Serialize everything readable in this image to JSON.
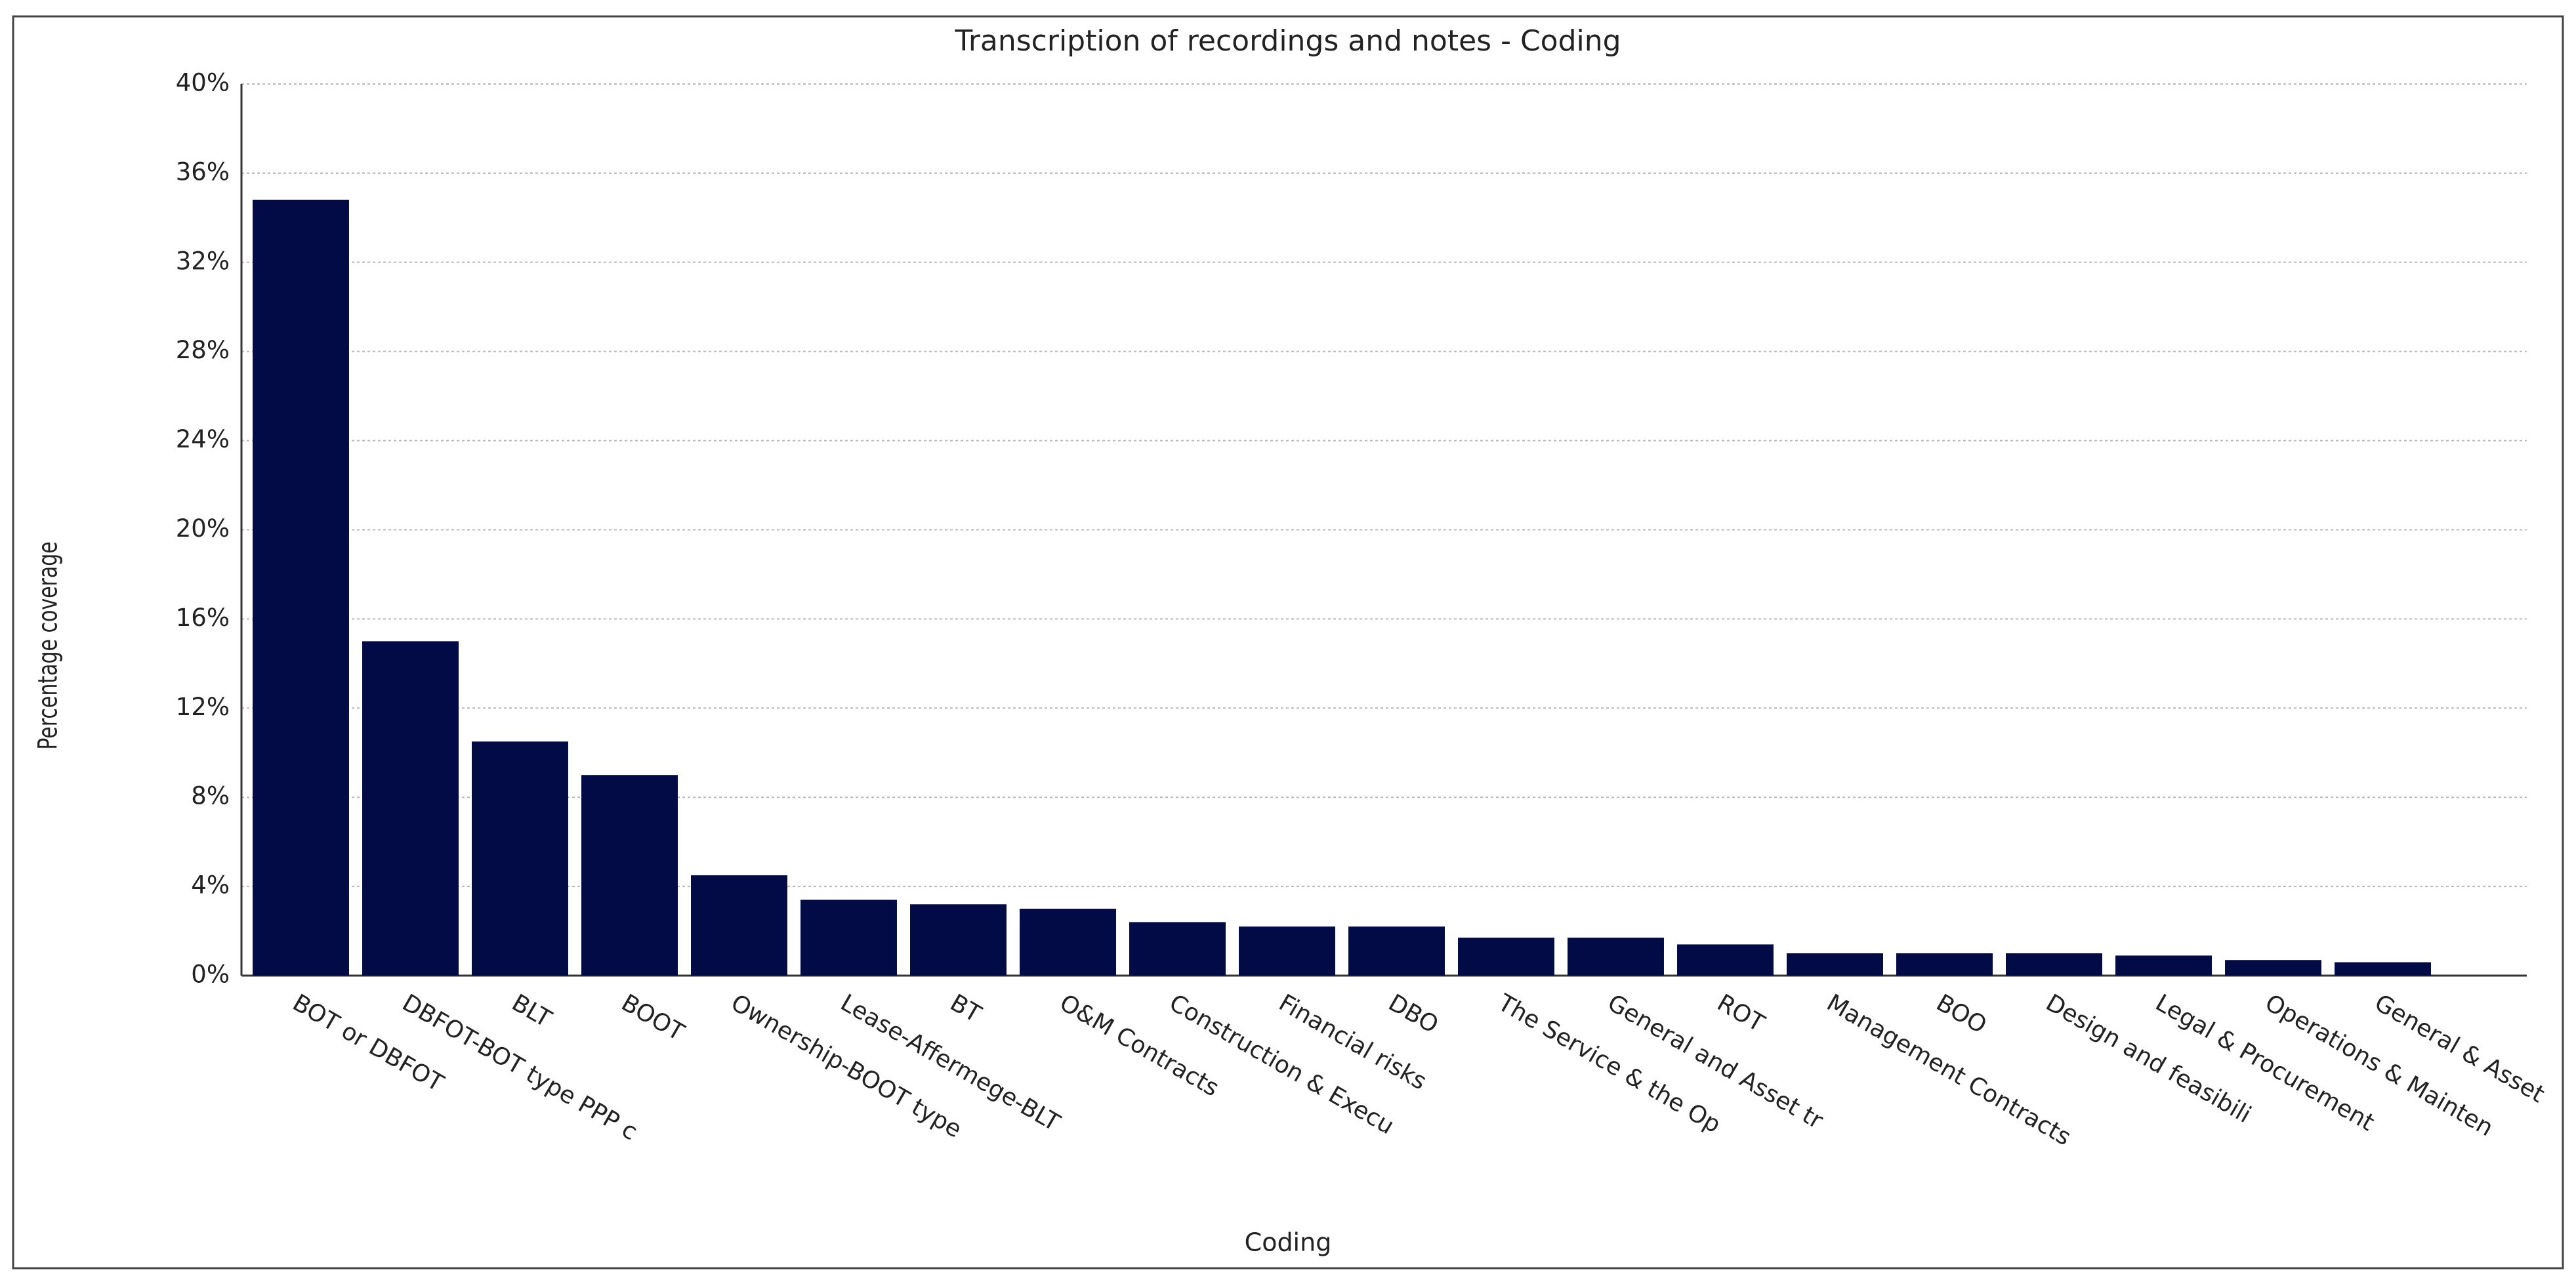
{
  "chart_data": {
    "type": "bar",
    "title": "Transcription of recordings and notes - Coding",
    "x_label": "Coding",
    "y_label": "Percentage coverage",
    "categories": [
      "BOT or DBFOT",
      "DBFOT-BOT type PPP c",
      "BLT",
      "BOOT",
      "Ownership-BOOT type",
      "Lease-Affermege-BLT",
      "BT",
      "O&M Contracts",
      "Construction & Execu",
      "Financial risks",
      "DBO",
      "The Service & the Op",
      "General and Asset tr",
      "ROT",
      "Management Contracts",
      "BOO",
      "Design and feasibili",
      "Legal & Procurement",
      "Operations & Mainten",
      "General & Asset"
    ],
    "values": [
      34.8,
      15.0,
      10.5,
      9.0,
      4.5,
      3.4,
      3.2,
      3.0,
      2.4,
      2.2,
      2.2,
      1.7,
      1.7,
      1.4,
      1.0,
      1.0,
      1.0,
      0.9,
      0.7,
      0.6
    ],
    "color": "#020b45",
    "ylim": [
      0,
      40
    ],
    "yticks": [
      {
        "value": 0,
        "label": "0%"
      },
      {
        "value": 4,
        "label": "4%"
      },
      {
        "value": 8,
        "label": "8%"
      },
      {
        "value": 12,
        "label": "12%"
      },
      {
        "value": 16,
        "label": "16%"
      },
      {
        "value": 20,
        "label": "20%"
      },
      {
        "value": 24,
        "label": "24%"
      },
      {
        "value": 28,
        "label": "28%"
      },
      {
        "value": 32,
        "label": "32%"
      },
      {
        "value": 36,
        "label": "36%"
      },
      {
        "value": 40,
        "label": "40%"
      }
    ],
    "grid": true
  }
}
